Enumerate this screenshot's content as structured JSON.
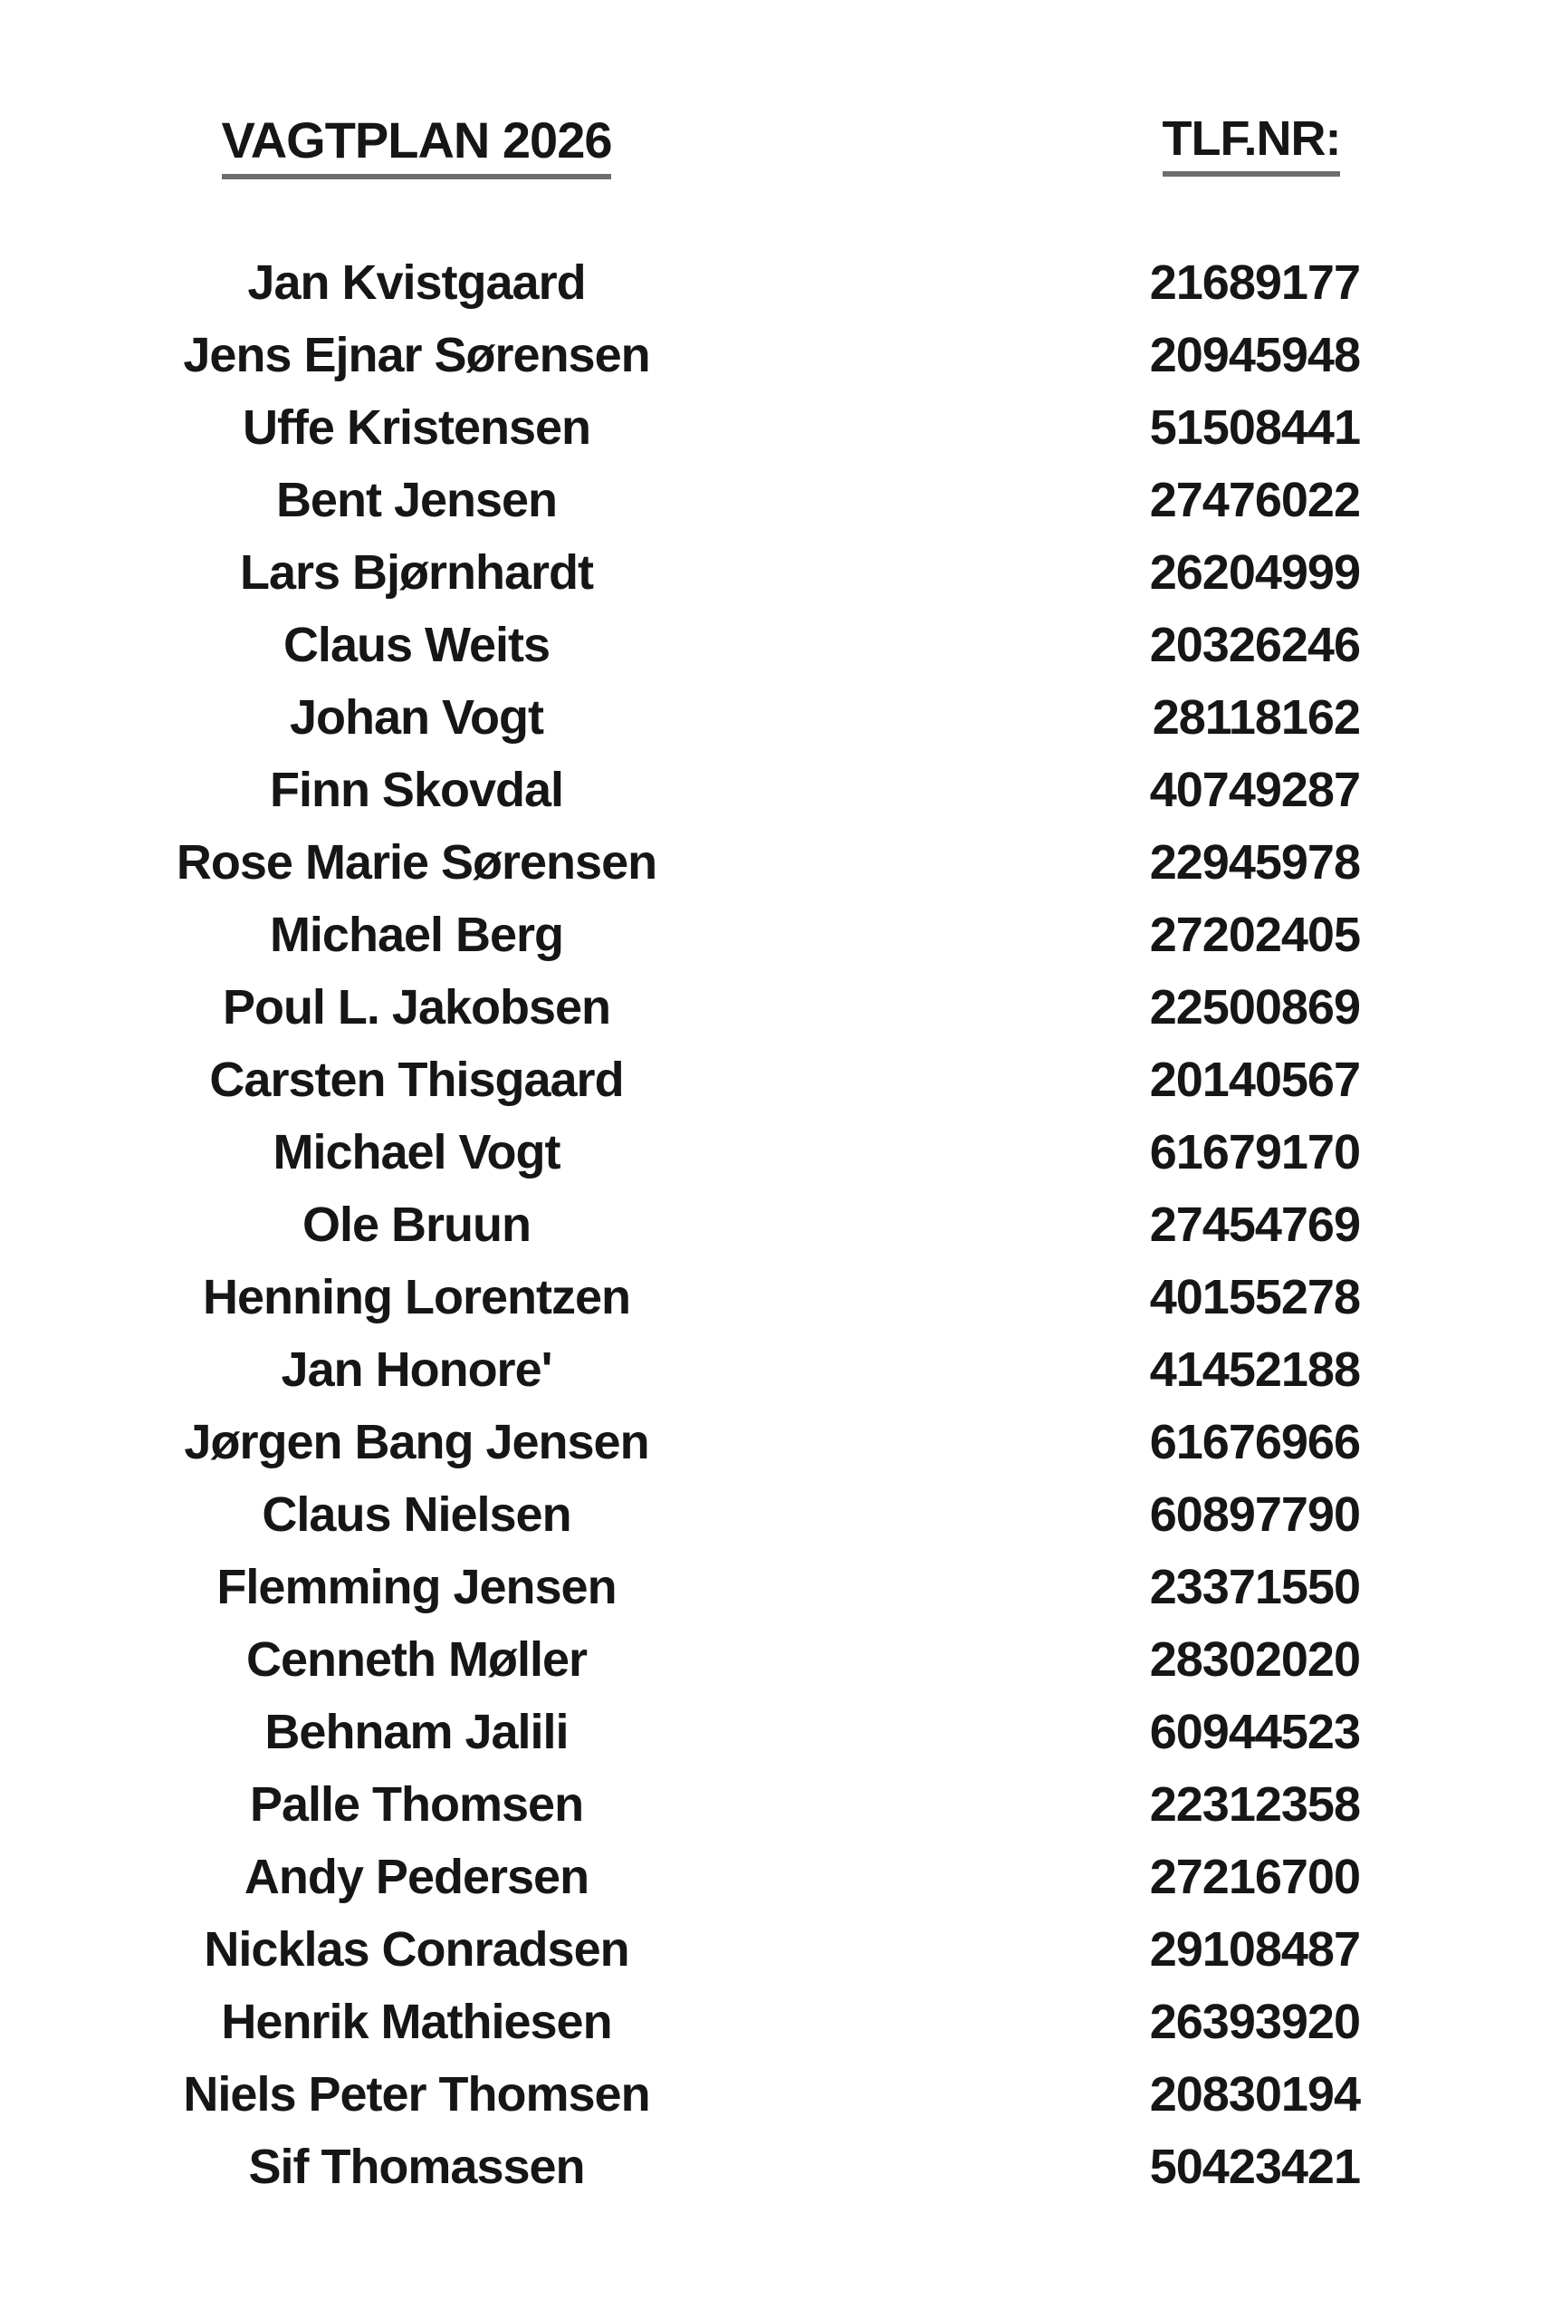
{
  "page": {
    "title": "VAGTPLAN 2026",
    "phone_header": "TLF.NR:",
    "text_color": "#161616",
    "underline_color": "#6e6e6e",
    "background_color": "#ffffff"
  },
  "roster": [
    {
      "name": "Jan Kvistgaard",
      "phone": "21689177"
    },
    {
      "name": "Jens Ejnar Sørensen",
      "phone": "20945948"
    },
    {
      "name": "Uffe Kristensen",
      "phone": "51508441"
    },
    {
      "name": "Bent Jensen",
      "phone": "27476022"
    },
    {
      "name": "Lars Bjørnhardt",
      "phone": "26204999"
    },
    {
      "name": "Claus Weits",
      "phone": "20326246"
    },
    {
      "name": "Johan Vogt",
      "phone": "28118162"
    },
    {
      "name": "Finn Skovdal",
      "phone": "40749287"
    },
    {
      "name": "Rose Marie Sørensen",
      "phone": "22945978"
    },
    {
      "name": "Michael Berg",
      "phone": "27202405"
    },
    {
      "name": "Poul L. Jakobsen",
      "phone": "22500869"
    },
    {
      "name": "Carsten Thisgaard",
      "phone": "20140567"
    },
    {
      "name": "Michael Vogt",
      "phone": "61679170"
    },
    {
      "name": "Ole Bruun",
      "phone": "27454769"
    },
    {
      "name": "Henning Lorentzen",
      "phone": "40155278"
    },
    {
      "name": "Jan Honore'",
      "phone": "41452188"
    },
    {
      "name": "Jørgen Bang Jensen",
      "phone": "61676966"
    },
    {
      "name": "Claus Nielsen",
      "phone": "60897790"
    },
    {
      "name": "Flemming Jensen",
      "phone": "23371550"
    },
    {
      "name": "Cenneth Møller",
      "phone": "28302020"
    },
    {
      "name": "Behnam Jalili",
      "phone": "60944523"
    },
    {
      "name": "Palle Thomsen",
      "phone": "22312358"
    },
    {
      "name": "Andy Pedersen",
      "phone": "27216700"
    },
    {
      "name": "Nicklas Conradsen",
      "phone": "29108487"
    },
    {
      "name": "Henrik Mathiesen",
      "phone": "26393920"
    },
    {
      "name": "Niels Peter Thomsen",
      "phone": "20830194"
    },
    {
      "name": "Sif Thomassen",
      "phone": "50423421"
    }
  ]
}
